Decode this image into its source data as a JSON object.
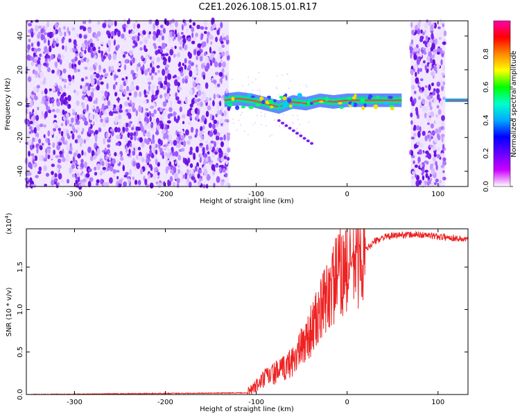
{
  "title": "C2E1.2026.108.15.01.R17",
  "chart_data": [
    {
      "type": "heatmap",
      "xlabel": "Height of straight line (km)",
      "ylabel": "Frequency (Hz)",
      "xlim": [
        -353,
        133
      ],
      "ylim": [
        -49,
        49
      ],
      "xticks": [
        -300,
        -200,
        -100,
        0,
        100
      ],
      "yticks": [
        -40,
        -20,
        0,
        20,
        40
      ],
      "colorbar": {
        "label": "Normalized spectral amplitude",
        "range": [
          0,
          1
        ],
        "ticks": [
          "0.0",
          "0.2",
          "0.4",
          "0.6",
          "0.8"
        ],
        "colors": [
          "#ffffff",
          "#cc00ff",
          "#6600ff",
          "#0000ff",
          "#00aaff",
          "#00ffcc",
          "#00ff00",
          "#ffff00",
          "#ff8800",
          "#ff0000",
          "#ff00aa"
        ]
      },
      "signal_track": [
        {
          "x": -135,
          "y": 2
        },
        {
          "x": -120,
          "y": 3
        },
        {
          "x": -105,
          "y": 2
        },
        {
          "x": -90,
          "y": 0
        },
        {
          "x": -75,
          "y": -2
        },
        {
          "x": -60,
          "y": 1
        },
        {
          "x": -45,
          "y": 0
        },
        {
          "x": -30,
          "y": 2
        },
        {
          "x": -15,
          "y": 1
        },
        {
          "x": 0,
          "y": 2
        },
        {
          "x": 30,
          "y": 2
        },
        {
          "x": 60,
          "y": 2
        }
      ],
      "noise_regions": [
        [
          -353,
          -130
        ],
        [
          70,
          108
        ]
      ]
    },
    {
      "type": "line",
      "xlabel": "Height of straight line (km)",
      "ylabel": "SNR (10 * v/v)",
      "yscale_label": "(x10",
      "yscale_exp": "4",
      "xlim": [
        -353,
        133
      ],
      "ylim": [
        0,
        1.95
      ],
      "xticks": [
        -300,
        -200,
        -100,
        0,
        100
      ],
      "yticks": [
        "0.0",
        "0.5",
        "1.0",
        "1.5"
      ],
      "series": [
        {
          "name": "SNR",
          "color": "#ee2222",
          "points": [
            [
              -353,
              0.0
            ],
            [
              -110,
              0.02
            ],
            [
              -100,
              0.1
            ],
            [
              -90,
              0.2
            ],
            [
              -80,
              0.25
            ],
            [
              -70,
              0.3
            ],
            [
              -60,
              0.4
            ],
            [
              -50,
              0.55
            ],
            [
              -40,
              0.75
            ],
            [
              -30,
              0.95
            ],
            [
              -20,
              1.2
            ],
            [
              -10,
              1.4
            ],
            [
              0,
              1.5
            ],
            [
              10,
              1.6
            ],
            [
              20,
              1.7
            ],
            [
              30,
              1.8
            ],
            [
              40,
              1.85
            ],
            [
              60,
              1.88
            ],
            [
              80,
              1.88
            ],
            [
              100,
              1.86
            ],
            [
              120,
              1.84
            ],
            [
              133,
              1.82
            ]
          ]
        }
      ]
    }
  ]
}
